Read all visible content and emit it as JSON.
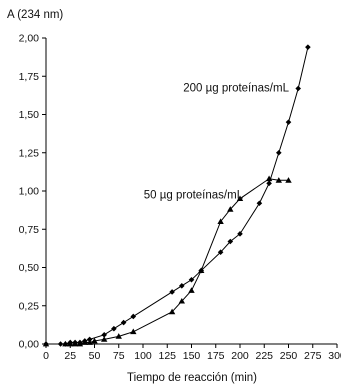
{
  "chart_data": {
    "type": "line",
    "title": "",
    "ylabel": "A (234 nm)",
    "xlabel": "Tiempo de reacción (min)",
    "xlim": [
      0,
      300
    ],
    "ylim": [
      0,
      2.0
    ],
    "x_ticks": [
      0,
      25,
      50,
      75,
      100,
      125,
      150,
      175,
      200,
      225,
      250,
      275,
      300
    ],
    "x_tick_labels": [
      "0",
      "25",
      "50",
      "75",
      "100",
      "125",
      "150",
      "175",
      "200",
      "225",
      "250",
      "275",
      "300"
    ],
    "y_ticks": [
      0,
      0.25,
      0.5,
      0.75,
      1.0,
      1.25,
      1.5,
      1.75,
      2.0
    ],
    "y_tick_labels": [
      "0,00",
      "0,25",
      "0,50",
      "0,75",
      "1,00",
      "1,25",
      "1,50",
      "1,75",
      "2,00"
    ],
    "grid": false,
    "legend": "none",
    "series": [
      {
        "marker": "diamond",
        "color": "#000000",
        "x": [
          0,
          15,
          20,
          25,
          30,
          35,
          40,
          45,
          60,
          70,
          80,
          90,
          130,
          140,
          150,
          160,
          180,
          190,
          200,
          220,
          230,
          240,
          250,
          260,
          270
        ],
        "y": [
          0.0,
          0.0,
          0.0,
          0.01,
          0.01,
          0.01,
          0.02,
          0.03,
          0.06,
          0.1,
          0.14,
          0.18,
          0.34,
          0.38,
          0.42,
          0.48,
          0.6,
          0.67,
          0.72,
          0.92,
          1.05,
          1.25,
          1.45,
          1.67,
          1.94
        ]
      },
      {
        "marker": "triangle",
        "color": "#000000",
        "x": [
          0,
          20,
          25,
          30,
          35,
          40,
          45,
          50,
          60,
          75,
          90,
          130,
          140,
          150,
          160,
          180,
          190,
          200,
          230,
          240,
          250
        ],
        "y": [
          0.0,
          0.0,
          0.0,
          0.0,
          0.0,
          0.01,
          0.01,
          0.02,
          0.03,
          0.05,
          0.08,
          0.21,
          0.28,
          0.35,
          0.48,
          0.8,
          0.88,
          0.95,
          1.08,
          1.07,
          1.07
        ]
      }
    ],
    "annotations": [
      {
        "text": "200 µg proteínas/mL",
        "x": 196,
        "y": 1.65
      },
      {
        "text": "50 µg proteínas/mL",
        "x": 152,
        "y": 0.95
      }
    ]
  }
}
